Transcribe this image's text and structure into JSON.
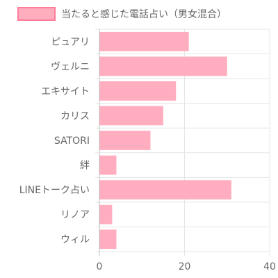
{
  "chart_data": {
    "type": "bar",
    "orientation": "horizontal",
    "title": "",
    "xlabel": "",
    "ylabel": "",
    "categories": [
      "ピュアリ",
      "ヴェルニ",
      "エキサイト",
      "カリス",
      "SATORI",
      "絆",
      "LINEトーク占い",
      "リノア",
      "ウィル"
    ],
    "series": [
      {
        "name": "当たると感じた電話占い（男女混合）",
        "values": [
          21,
          30,
          18,
          15,
          12,
          4,
          31,
          3,
          4
        ],
        "color": "#ffadbf",
        "border_color": "#ff7c9b"
      }
    ],
    "xlim": [
      0,
      40
    ],
    "xticks": [
      0,
      20,
      40
    ],
    "grid": true,
    "legend_position": "top"
  }
}
